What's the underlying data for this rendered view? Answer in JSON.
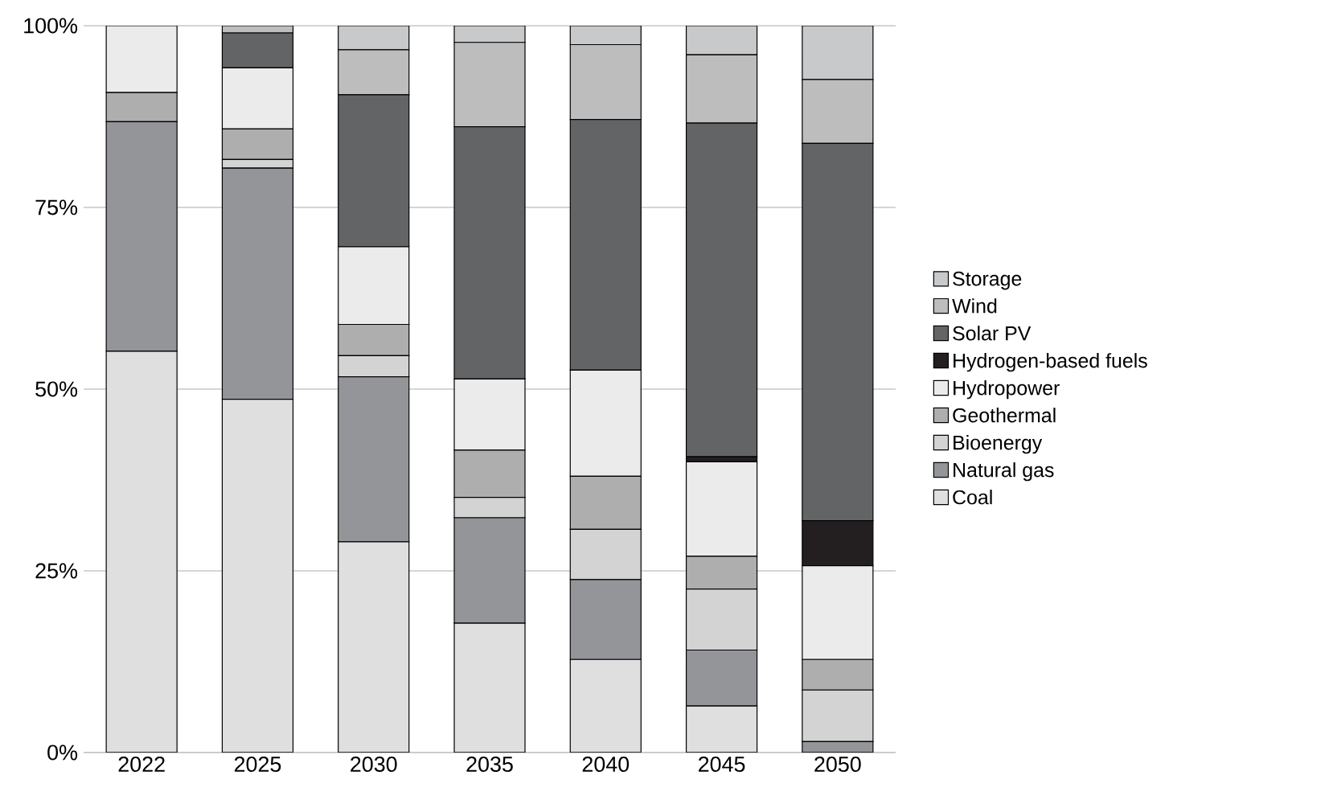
{
  "chart_data": {
    "type": "bar",
    "stacked": true,
    "categories": [
      "2022",
      "2025",
      "2030",
      "2035",
      "2040",
      "2045",
      "2050"
    ],
    "series": [
      {
        "name": "Coal",
        "color": "#dfdfdf",
        "values": [
          55.2,
          48.6,
          29.0,
          17.8,
          12.8,
          6.4,
          0
        ]
      },
      {
        "name": "Natural gas",
        "color": "#939598",
        "values": [
          31.6,
          31.8,
          22.7,
          14.5,
          11.0,
          7.7,
          1.5
        ]
      },
      {
        "name": "Bioenergy",
        "color": "#d3d3d3",
        "values": [
          0,
          1.2,
          2.9,
          2.8,
          6.9,
          8.4,
          7.1
        ]
      },
      {
        "name": "Geothermal",
        "color": "#aeaeae",
        "values": [
          4.0,
          4.2,
          4.3,
          6.5,
          7.3,
          4.5,
          4.2
        ]
      },
      {
        "name": "Hydropower",
        "color": "#ebebeb",
        "values": [
          9.2,
          8.4,
          10.7,
          9.8,
          14.6,
          13.0,
          12.9
        ]
      },
      {
        "name": "Hydrogen-based fuels",
        "color": "#231f20",
        "values": [
          0,
          0,
          0,
          0,
          0,
          0.7,
          6.2
        ]
      },
      {
        "name": "Solar PV",
        "color": "#636466",
        "values": [
          0,
          4.8,
          20.9,
          34.7,
          34.5,
          45.9,
          51.9
        ]
      },
      {
        "name": "Wind",
        "color": "#bdbdbd",
        "values": [
          0,
          1.0,
          6.2,
          11.6,
          10.3,
          9.4,
          8.8
        ]
      },
      {
        "name": "Storage",
        "color": "#c8c9ca",
        "values": [
          0,
          0,
          3.3,
          2.3,
          2.6,
          4.0,
          7.4
        ]
      }
    ],
    "ylim": [
      0,
      100
    ],
    "yticks": [
      {
        "value": 0,
        "label": "0%"
      },
      {
        "value": 25,
        "label": "25%"
      },
      {
        "value": 50,
        "label": "50%"
      },
      {
        "value": 75,
        "label": "75%"
      },
      {
        "value": 100,
        "label": "100%"
      }
    ],
    "grid": "y",
    "legend": "right"
  }
}
